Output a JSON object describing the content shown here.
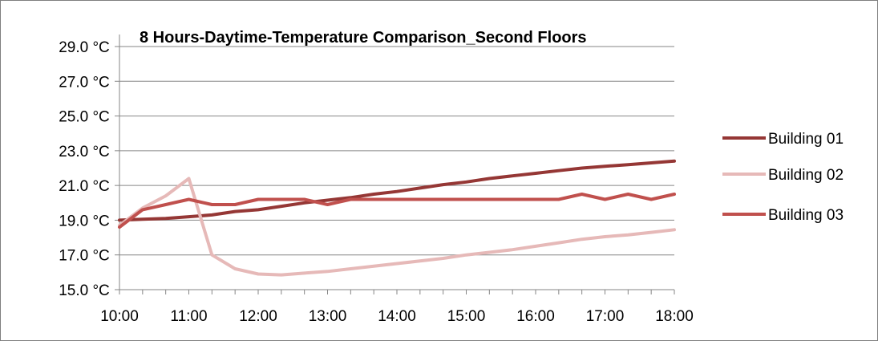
{
  "chart_data": {
    "type": "line",
    "title": "8 Hours-Daytime-Temperature Comparison_Second Floors",
    "xlabel": "",
    "ylabel": "",
    "x_range_hours": [
      10,
      18
    ],
    "ylim": [
      15,
      29
    ],
    "y_ticks": [
      15,
      17,
      19,
      21,
      23,
      25,
      27,
      29
    ],
    "y_tick_labels": [
      "15.0 °C",
      "17.0 °C",
      "19.0 °C",
      "21.0 °C",
      "23.0 °C",
      "25.0 °C",
      "27.0 °C",
      "29.0 °C"
    ],
    "x_tick_labels": [
      "10:00",
      "11:00",
      "12:00",
      "13:00",
      "14:00",
      "15:00",
      "16:00",
      "17:00",
      "18:00"
    ],
    "grid": "horizontal",
    "legend_position": "right",
    "x": [
      "10:00",
      "10:20",
      "10:40",
      "11:00",
      "11:20",
      "11:40",
      "12:00",
      "12:20",
      "12:40",
      "13:00",
      "13:20",
      "13:40",
      "14:00",
      "14:20",
      "14:40",
      "15:00",
      "15:20",
      "15:40",
      "16:00",
      "16:20",
      "16:40",
      "17:00",
      "17:20",
      "17:40",
      "18:00"
    ],
    "series": [
      {
        "name": "Building 01",
        "color": "#953735",
        "values": [
          19.0,
          19.05,
          19.1,
          19.2,
          19.3,
          19.5,
          19.6,
          19.8,
          20.0,
          20.15,
          20.3,
          20.5,
          20.65,
          20.85,
          21.05,
          21.2,
          21.4,
          21.55,
          21.7,
          21.85,
          22.0,
          22.1,
          22.2,
          22.3,
          22.4
        ]
      },
      {
        "name": "Building 02",
        "color": "#e6b9b8",
        "values": [
          18.7,
          19.7,
          20.4,
          21.4,
          17.0,
          16.2,
          15.9,
          15.85,
          15.95,
          16.05,
          16.2,
          16.35,
          16.5,
          16.65,
          16.8,
          17.0,
          17.15,
          17.3,
          17.5,
          17.7,
          17.9,
          18.05,
          18.15,
          18.3,
          18.45
        ]
      },
      {
        "name": "Building 03",
        "color": "#c0504d",
        "values": [
          18.6,
          19.6,
          19.9,
          20.2,
          19.9,
          19.9,
          20.2,
          20.2,
          20.2,
          19.9,
          20.2,
          20.2,
          20.2,
          20.2,
          20.2,
          20.2,
          20.2,
          20.2,
          20.2,
          20.2,
          20.5,
          20.2,
          20.5,
          20.2,
          20.5
        ]
      }
    ]
  }
}
